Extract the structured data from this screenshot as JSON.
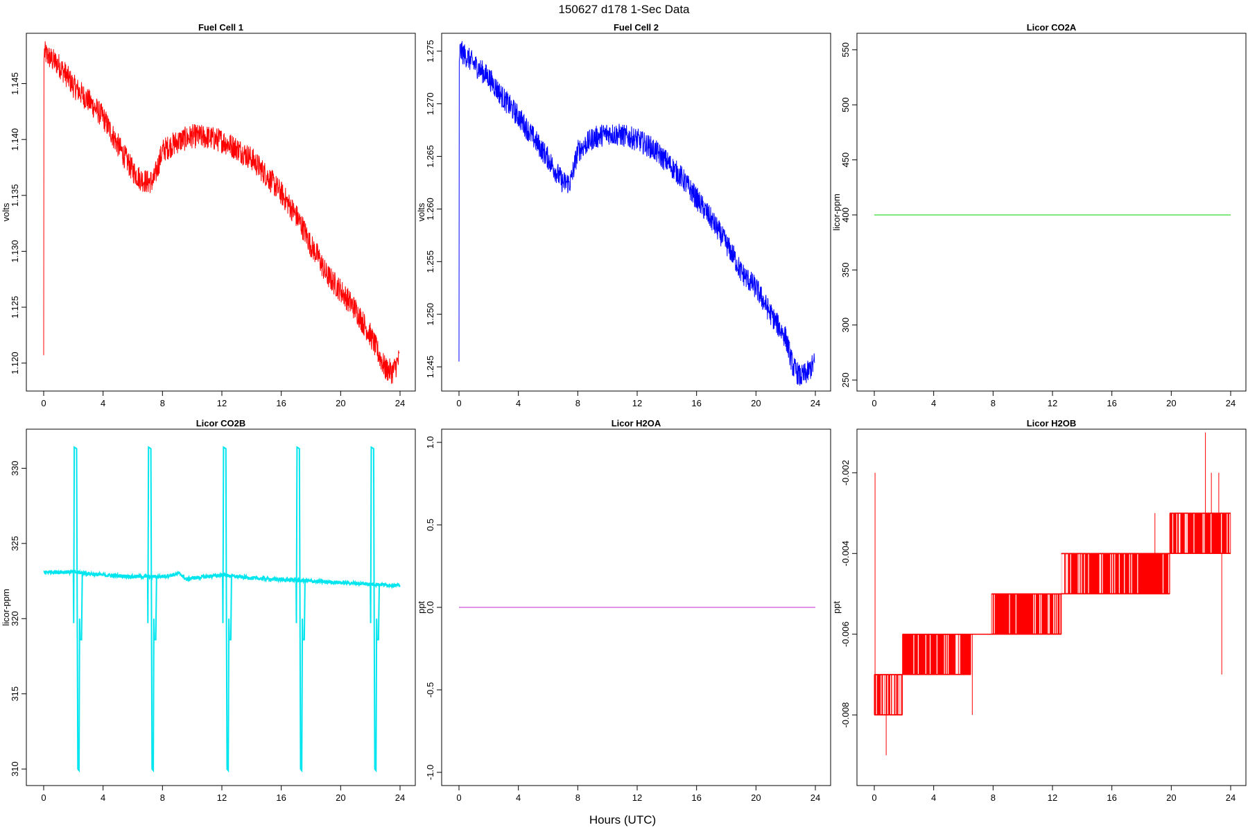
{
  "figure": {
    "title": "150627   d178   1-Sec Data",
    "xlabel": "Hours (UTC)"
  },
  "chart_data": [
    {
      "type": "line",
      "title": "Fuel Cell 1",
      "ylabel": "volts",
      "color": "#ff0000",
      "xlim": [
        0,
        24
      ],
      "ylim": [
        1.1175,
        1.1495
      ],
      "xticks": [
        0,
        4,
        8,
        12,
        16,
        20,
        24
      ],
      "yticks": [
        1.12,
        1.125,
        1.13,
        1.135,
        1.14,
        1.145
      ],
      "ytick_labels": [
        "1.120",
        "1.125",
        "1.130",
        "1.135",
        "1.140",
        "1.145"
      ],
      "x": [
        0,
        0.02,
        0.05,
        0.1,
        0.5,
        1,
        1.5,
        2,
        3,
        4,
        5,
        6,
        6.5,
        7,
        7.4,
        8,
        9,
        10,
        11,
        12,
        13,
        14,
        15,
        16,
        17,
        17.5,
        18,
        18.5,
        19,
        20,
        21,
        22,
        23,
        23.5,
        24
      ],
      "y": [
        1.1207,
        1.147,
        1.1478,
        1.1477,
        1.1472,
        1.1467,
        1.1458,
        1.1448,
        1.1435,
        1.142,
        1.1395,
        1.1372,
        1.1365,
        1.1362,
        1.1363,
        1.139,
        1.1398,
        1.1403,
        1.1402,
        1.1399,
        1.1392,
        1.1383,
        1.1368,
        1.1352,
        1.1332,
        1.132,
        1.1305,
        1.1295,
        1.128,
        1.1265,
        1.1248,
        1.1225,
        1.1195,
        1.1192,
        1.1205
      ],
      "noise": 0.0011
    },
    {
      "type": "line",
      "title": "Fuel Cell 2",
      "ylabel": "volts",
      "color": "#0000ff",
      "xlim": [
        0,
        24
      ],
      "ylim": [
        1.2427,
        1.2767
      ],
      "xticks": [
        0,
        4,
        8,
        12,
        16,
        20,
        24
      ],
      "yticks": [
        1.245,
        1.25,
        1.255,
        1.26,
        1.265,
        1.27,
        1.275
      ],
      "ytick_labels": [
        "1.245",
        "1.250",
        "1.255",
        "1.260",
        "1.265",
        "1.270",
        "1.275"
      ],
      "x": [
        0,
        0.02,
        0.05,
        0.1,
        0.5,
        1,
        2,
        3,
        4,
        5,
        6,
        7,
        7.5,
        8,
        9,
        10,
        11,
        12,
        13,
        14,
        15,
        16,
        17,
        18,
        18.5,
        19,
        20,
        21,
        22,
        22.5,
        23,
        23.5,
        24
      ],
      "y": [
        1.2455,
        1.274,
        1.275,
        1.275,
        1.2745,
        1.2738,
        1.2725,
        1.2705,
        1.2688,
        1.2668,
        1.2648,
        1.2625,
        1.2625,
        1.2655,
        1.2667,
        1.2672,
        1.267,
        1.2666,
        1.2658,
        1.2645,
        1.263,
        1.261,
        1.259,
        1.2567,
        1.2555,
        1.254,
        1.2525,
        1.25,
        1.2478,
        1.245,
        1.244,
        1.2445,
        1.2455
      ],
      "noise": 0.0011
    },
    {
      "type": "line",
      "title": "Licor CO2A",
      "ylabel": "licor-ppm",
      "color": "#33dd33",
      "xlim": [
        0,
        24
      ],
      "ylim": [
        240,
        565
      ],
      "xticks": [
        0,
        4,
        8,
        12,
        16,
        20,
        24
      ],
      "yticks": [
        250,
        300,
        350,
        400,
        450,
        500,
        550
      ],
      "ytick_labels": [
        "250",
        "300",
        "350",
        "400",
        "450",
        "500",
        "550"
      ],
      "x": [
        0,
        24
      ],
      "y": [
        400,
        400
      ]
    },
    {
      "type": "line",
      "title": "Licor CO2B",
      "ylabel": "licor-ppm",
      "color": "#00e5ee",
      "xlim": [
        0,
        24
      ],
      "ylim": [
        308.9,
        332.6
      ],
      "xticks": [
        0,
        4,
        8,
        12,
        16,
        20,
        24
      ],
      "yticks": [
        310,
        315,
        320,
        325,
        330
      ],
      "ytick_labels": [
        "310",
        "315",
        "320",
        "325",
        "330"
      ],
      "baseline": {
        "x": [
          0,
          2,
          4,
          6,
          7,
          8,
          9.2,
          9.6,
          10,
          12,
          14,
          16,
          18,
          20,
          22,
          24
        ],
        "y": [
          323.1,
          323.1,
          322.9,
          322.8,
          322.8,
          322.8,
          323.0,
          322.6,
          322.7,
          322.9,
          322.7,
          322.6,
          322.5,
          322.4,
          322.3,
          322.2
        ]
      },
      "spikes": [
        2.0,
        7.0,
        12.05,
        17.0,
        22.0
      ],
      "spike_high": 331.4,
      "spike_low": 310.0,
      "noise": 0.12
    },
    {
      "type": "line",
      "title": "Licor H2OA",
      "ylabel": "ppt",
      "color": "#cc55dd",
      "xlim": [
        0,
        24
      ],
      "ylim": [
        -1.08,
        1.08
      ],
      "xticks": [
        0,
        4,
        8,
        12,
        16,
        20,
        24
      ],
      "yticks": [
        -1.0,
        -0.5,
        0.0,
        0.5,
        1.0
      ],
      "ytick_labels": [
        "-1.0",
        "-0.5",
        "0.0",
        "0.5",
        "1.0"
      ],
      "x": [
        0,
        24
      ],
      "y": [
        0,
        0
      ]
    },
    {
      "type": "line",
      "title": "Licor H2OB",
      "ylabel": "ppt",
      "color": "#ff0000",
      "xlim": [
        0,
        24
      ],
      "ylim": [
        -0.00975,
        -0.00092
      ],
      "xticks": [
        0,
        4,
        8,
        12,
        16,
        20,
        24
      ],
      "yticks": [
        -0.008,
        -0.006,
        -0.004,
        -0.002
      ],
      "ytick_labels": [
        "-0.008",
        "-0.006",
        "-0.004",
        "-0.002"
      ],
      "levels": [
        {
          "x0": 0.0,
          "x1": 1.9,
          "lo": -0.008,
          "hi": -0.007
        },
        {
          "x0": 1.9,
          "x1": 6.5,
          "lo": -0.007,
          "hi": -0.006
        },
        {
          "x0": 6.5,
          "x1": 7.9,
          "lo": -0.006,
          "hi": -0.006
        },
        {
          "x0": 7.9,
          "x1": 12.6,
          "lo": -0.006,
          "hi": -0.005
        },
        {
          "x0": 12.6,
          "x1": 14.3,
          "lo": -0.005,
          "hi": -0.004
        },
        {
          "x0": 14.3,
          "x1": 19.9,
          "lo": -0.005,
          "hi": -0.004
        },
        {
          "x0": 19.9,
          "x1": 24.0,
          "lo": -0.004,
          "hi": -0.003
        }
      ],
      "outliers": [
        {
          "x": 0.05,
          "y": -0.002
        },
        {
          "x": 0.8,
          "y": -0.009
        },
        {
          "x": 6.6,
          "y": -0.008
        },
        {
          "x": 18.9,
          "y": -0.003
        },
        {
          "x": 22.3,
          "y": -0.001
        },
        {
          "x": 22.7,
          "y": -0.002
        },
        {
          "x": 23.2,
          "y": -0.002
        },
        {
          "x": 23.4,
          "y": -0.007
        }
      ]
    }
  ]
}
